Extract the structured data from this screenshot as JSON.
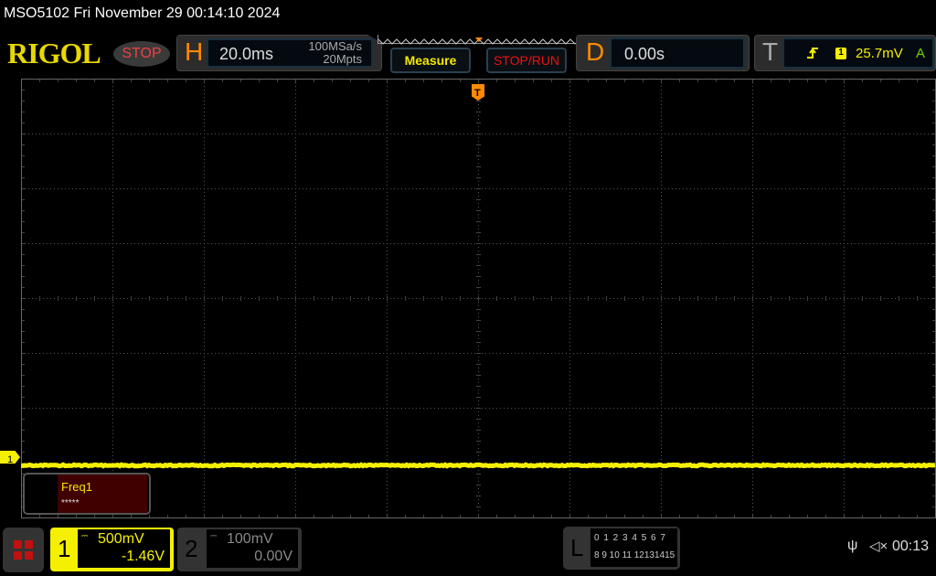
{
  "title": "MSO5102  Fri November 29 00:14:10 2024",
  "logo": "RIGOL",
  "run_state": "STOP",
  "horizontal": {
    "letter": "H",
    "timebase": "20.0ms",
    "sample_rate": "100MSa/s",
    "memory_depth": "20Mpts"
  },
  "buttons": {
    "measure": "Measure",
    "stop_run": "STOP/RUN"
  },
  "delay": {
    "letter": "D",
    "value": "0.00s"
  },
  "trigger": {
    "letter": "T",
    "slope_icon": "rising-edge-icon",
    "source": "1",
    "level": "25.7mV",
    "mode": "A"
  },
  "channel_marker": "1",
  "trigger_marker": "T",
  "measurement": {
    "name": "Freq1",
    "value": "*****"
  },
  "channels": [
    {
      "num": "1",
      "scale": "500mV",
      "offset": "-1.46V",
      "color": "#f5f000",
      "active": true
    },
    {
      "num": "2",
      "scale": "100mV",
      "offset": "0.00V",
      "color": "#888888",
      "active": false
    }
  ],
  "logic": {
    "letter": "L",
    "row1": [
      "0",
      "1",
      "2",
      "3",
      "4",
      "5",
      "6",
      "7"
    ],
    "row2": [
      "8",
      "9",
      "10",
      "11",
      "12",
      "13",
      "14",
      "15"
    ]
  },
  "status": {
    "usb_icon": "usb-icon",
    "mute_icon": "speaker-muted-icon",
    "time": "00:13"
  },
  "colors": {
    "ch1": "#f5f000",
    "accent": "#ff8a00",
    "stop": "#f04040"
  }
}
